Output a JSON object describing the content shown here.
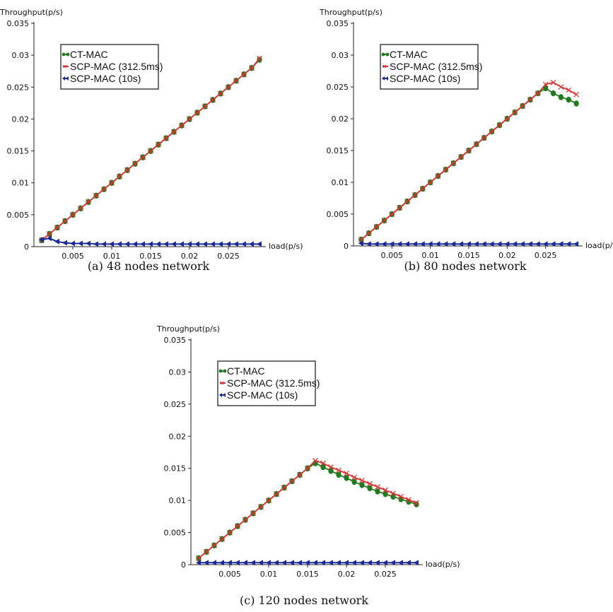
{
  "chart_data": [
    {
      "type": "line",
      "caption": "(a) 48 nodes network",
      "ylabel": "Throughput(p/s)",
      "xlabel": "load(p/s)",
      "xlim": [
        0.0,
        0.03
      ],
      "ylim": [
        0,
        0.035
      ],
      "xticks": [
        "0.005",
        "0.01",
        "0.015",
        "0.02",
        "0.025"
      ],
      "yticks": [
        "0",
        "0.005",
        "0.01",
        "0.015",
        "0.02",
        "0.025",
        "0.03",
        "0.035"
      ],
      "legend_position": "top-left",
      "series": [
        {
          "name": "CT-MAC",
          "color": "#1e7b1e",
          "marker": "circle",
          "x": [
            0.001,
            0.002,
            0.003,
            0.004,
            0.005,
            0.006,
            0.007,
            0.008,
            0.009,
            0.01,
            0.011,
            0.012,
            0.013,
            0.014,
            0.015,
            0.016,
            0.017,
            0.018,
            0.019,
            0.02,
            0.021,
            0.022,
            0.023,
            0.024,
            0.025,
            0.026,
            0.027,
            0.028,
            0.029
          ],
          "y": [
            0.001,
            0.002,
            0.003,
            0.004,
            0.005,
            0.006,
            0.007,
            0.008,
            0.009,
            0.01,
            0.011,
            0.012,
            0.013,
            0.014,
            0.015,
            0.016,
            0.017,
            0.018,
            0.019,
            0.02,
            0.021,
            0.022,
            0.023,
            0.024,
            0.025,
            0.026,
            0.027,
            0.028,
            0.0293
          ]
        },
        {
          "name": "SCP-MAC (312.5ms)",
          "color": "#e03030",
          "marker": "x",
          "x": [
            0.001,
            0.002,
            0.003,
            0.004,
            0.005,
            0.006,
            0.007,
            0.008,
            0.009,
            0.01,
            0.011,
            0.012,
            0.013,
            0.014,
            0.015,
            0.016,
            0.017,
            0.018,
            0.019,
            0.02,
            0.021,
            0.022,
            0.023,
            0.024,
            0.025,
            0.026,
            0.027,
            0.028,
            0.029
          ],
          "y": [
            0.001,
            0.002,
            0.003,
            0.004,
            0.005,
            0.006,
            0.007,
            0.008,
            0.009,
            0.01,
            0.011,
            0.012,
            0.013,
            0.014,
            0.015,
            0.016,
            0.017,
            0.018,
            0.019,
            0.02,
            0.021,
            0.022,
            0.023,
            0.024,
            0.025,
            0.026,
            0.027,
            0.028,
            0.0295
          ]
        },
        {
          "name": "SCP-MAC (10s)",
          "color": "#1a2a9a",
          "marker": "triangle",
          "x": [
            0.001,
            0.002,
            0.003,
            0.004,
            0.005,
            0.006,
            0.007,
            0.008,
            0.009,
            0.01,
            0.011,
            0.012,
            0.013,
            0.014,
            0.015,
            0.016,
            0.017,
            0.018,
            0.019,
            0.02,
            0.021,
            0.022,
            0.023,
            0.024,
            0.025,
            0.026,
            0.027,
            0.028,
            0.029
          ],
          "y": [
            0.0011,
            0.0013,
            0.0008,
            0.0006,
            0.0005,
            0.0005,
            0.0005,
            0.0004,
            0.0004,
            0.0004,
            0.0004,
            0.0004,
            0.0004,
            0.0004,
            0.0004,
            0.0004,
            0.0004,
            0.0004,
            0.0004,
            0.0004,
            0.0004,
            0.0004,
            0.0004,
            0.0004,
            0.0004,
            0.0004,
            0.0004,
            0.0004,
            0.0004
          ]
        }
      ]
    },
    {
      "type": "line",
      "caption": "(b) 80 nodes network",
      "ylabel": "Throughput(p/s)",
      "xlabel": "load(p/s)",
      "xlim": [
        0.0,
        0.03
      ],
      "ylim": [
        0,
        0.035
      ],
      "xticks": [
        "0.005",
        "0.01",
        "0.015",
        "0.02",
        "0.025"
      ],
      "yticks": [
        "0",
        "0.005",
        "0.01",
        "0.015",
        "0.02",
        "0.025",
        "0.03",
        "0.035"
      ],
      "legend_position": "top-left",
      "series": [
        {
          "name": "CT-MAC",
          "color": "#1e7b1e",
          "marker": "circle",
          "x": [
            0.001,
            0.002,
            0.003,
            0.004,
            0.005,
            0.006,
            0.007,
            0.008,
            0.009,
            0.01,
            0.011,
            0.012,
            0.013,
            0.014,
            0.015,
            0.016,
            0.017,
            0.018,
            0.019,
            0.02,
            0.021,
            0.022,
            0.023,
            0.024,
            0.025,
            0.026,
            0.027,
            0.028,
            0.029
          ],
          "y": [
            0.001,
            0.002,
            0.003,
            0.004,
            0.005,
            0.006,
            0.007,
            0.008,
            0.009,
            0.01,
            0.011,
            0.012,
            0.013,
            0.014,
            0.015,
            0.016,
            0.017,
            0.018,
            0.019,
            0.02,
            0.021,
            0.022,
            0.023,
            0.024,
            0.0248,
            0.024,
            0.0234,
            0.023,
            0.0224
          ]
        },
        {
          "name": "SCP-MAC (312.5ms)",
          "color": "#e03030",
          "marker": "x",
          "x": [
            0.001,
            0.002,
            0.003,
            0.004,
            0.005,
            0.006,
            0.007,
            0.008,
            0.009,
            0.01,
            0.011,
            0.012,
            0.013,
            0.014,
            0.015,
            0.016,
            0.017,
            0.018,
            0.019,
            0.02,
            0.021,
            0.022,
            0.023,
            0.024,
            0.025,
            0.026,
            0.027,
            0.028,
            0.029
          ],
          "y": [
            0.001,
            0.002,
            0.003,
            0.004,
            0.005,
            0.006,
            0.007,
            0.008,
            0.009,
            0.01,
            0.011,
            0.012,
            0.013,
            0.014,
            0.015,
            0.016,
            0.017,
            0.018,
            0.019,
            0.02,
            0.021,
            0.022,
            0.023,
            0.024,
            0.0254,
            0.0257,
            0.025,
            0.0245,
            0.0238
          ]
        },
        {
          "name": "SCP-MAC (10s)",
          "color": "#1a2a9a",
          "marker": "triangle",
          "x": [
            0.001,
            0.002,
            0.003,
            0.004,
            0.005,
            0.006,
            0.007,
            0.008,
            0.009,
            0.01,
            0.011,
            0.012,
            0.013,
            0.014,
            0.015,
            0.016,
            0.017,
            0.018,
            0.019,
            0.02,
            0.021,
            0.022,
            0.023,
            0.024,
            0.025,
            0.026,
            0.027,
            0.028,
            0.029
          ],
          "y": [
            0.0004,
            0.0003,
            0.0003,
            0.0003,
            0.0003,
            0.0003,
            0.0003,
            0.0003,
            0.0003,
            0.0003,
            0.0003,
            0.0003,
            0.0003,
            0.0003,
            0.0003,
            0.0003,
            0.0003,
            0.0003,
            0.0003,
            0.0003,
            0.0003,
            0.0003,
            0.0003,
            0.0003,
            0.0003,
            0.0003,
            0.0003,
            0.0003,
            0.0003
          ]
        }
      ]
    },
    {
      "type": "line",
      "caption": "(c) 120 nodes network",
      "ylabel": "Throughput(p/s)",
      "xlabel": "load(p/s)",
      "xlim": [
        0.0,
        0.03
      ],
      "ylim": [
        0,
        0.035
      ],
      "xticks": [
        "0.005",
        "0.01",
        "0.015",
        "0.02",
        "0.025"
      ],
      "yticks": [
        "0",
        "0.005",
        "0.01",
        "0.015",
        "0.02",
        "0.025",
        "0.03",
        "0.035"
      ],
      "legend_position": "top-left",
      "series": [
        {
          "name": "CT-MAC",
          "color": "#1e7b1e",
          "marker": "circle",
          "x": [
            0.001,
            0.002,
            0.003,
            0.004,
            0.005,
            0.006,
            0.007,
            0.008,
            0.009,
            0.01,
            0.011,
            0.012,
            0.013,
            0.014,
            0.015,
            0.016,
            0.017,
            0.018,
            0.019,
            0.02,
            0.021,
            0.022,
            0.023,
            0.024,
            0.025,
            0.026,
            0.027,
            0.028,
            0.029
          ],
          "y": [
            0.001,
            0.002,
            0.003,
            0.004,
            0.005,
            0.006,
            0.007,
            0.008,
            0.009,
            0.01,
            0.011,
            0.012,
            0.013,
            0.014,
            0.015,
            0.0158,
            0.0152,
            0.0146,
            0.014,
            0.0135,
            0.0129,
            0.0124,
            0.0119,
            0.0114,
            0.011,
            0.0106,
            0.0102,
            0.0098,
            0.0094
          ]
        },
        {
          "name": "SCP-MAC (312.5ms)",
          "color": "#e03030",
          "marker": "x",
          "x": [
            0.001,
            0.002,
            0.003,
            0.004,
            0.005,
            0.006,
            0.007,
            0.008,
            0.009,
            0.01,
            0.011,
            0.012,
            0.013,
            0.014,
            0.015,
            0.016,
            0.017,
            0.018,
            0.019,
            0.02,
            0.021,
            0.022,
            0.023,
            0.024,
            0.025,
            0.026,
            0.027,
            0.028,
            0.029
          ],
          "y": [
            0.001,
            0.002,
            0.003,
            0.004,
            0.005,
            0.006,
            0.007,
            0.008,
            0.009,
            0.01,
            0.011,
            0.012,
            0.013,
            0.014,
            0.015,
            0.0162,
            0.0158,
            0.0152,
            0.0147,
            0.0142,
            0.0136,
            0.0131,
            0.0126,
            0.0121,
            0.0116,
            0.0111,
            0.0106,
            0.0101,
            0.0096
          ]
        },
        {
          "name": "SCP-MAC (10s)",
          "color": "#1a2a9a",
          "marker": "triangle",
          "x": [
            0.001,
            0.002,
            0.003,
            0.004,
            0.005,
            0.006,
            0.007,
            0.008,
            0.009,
            0.01,
            0.011,
            0.012,
            0.013,
            0.014,
            0.015,
            0.016,
            0.017,
            0.018,
            0.019,
            0.02,
            0.021,
            0.022,
            0.023,
            0.024,
            0.025,
            0.026,
            0.027,
            0.028,
            0.029
          ],
          "y": [
            0.0003,
            0.0003,
            0.0003,
            0.0003,
            0.0003,
            0.0003,
            0.0003,
            0.0003,
            0.0003,
            0.0003,
            0.0003,
            0.0003,
            0.0003,
            0.0003,
            0.0003,
            0.0003,
            0.0003,
            0.0003,
            0.0003,
            0.0003,
            0.0003,
            0.0003,
            0.0003,
            0.0003,
            0.0003,
            0.0003,
            0.0003,
            0.0003,
            0.0003
          ]
        }
      ]
    }
  ]
}
